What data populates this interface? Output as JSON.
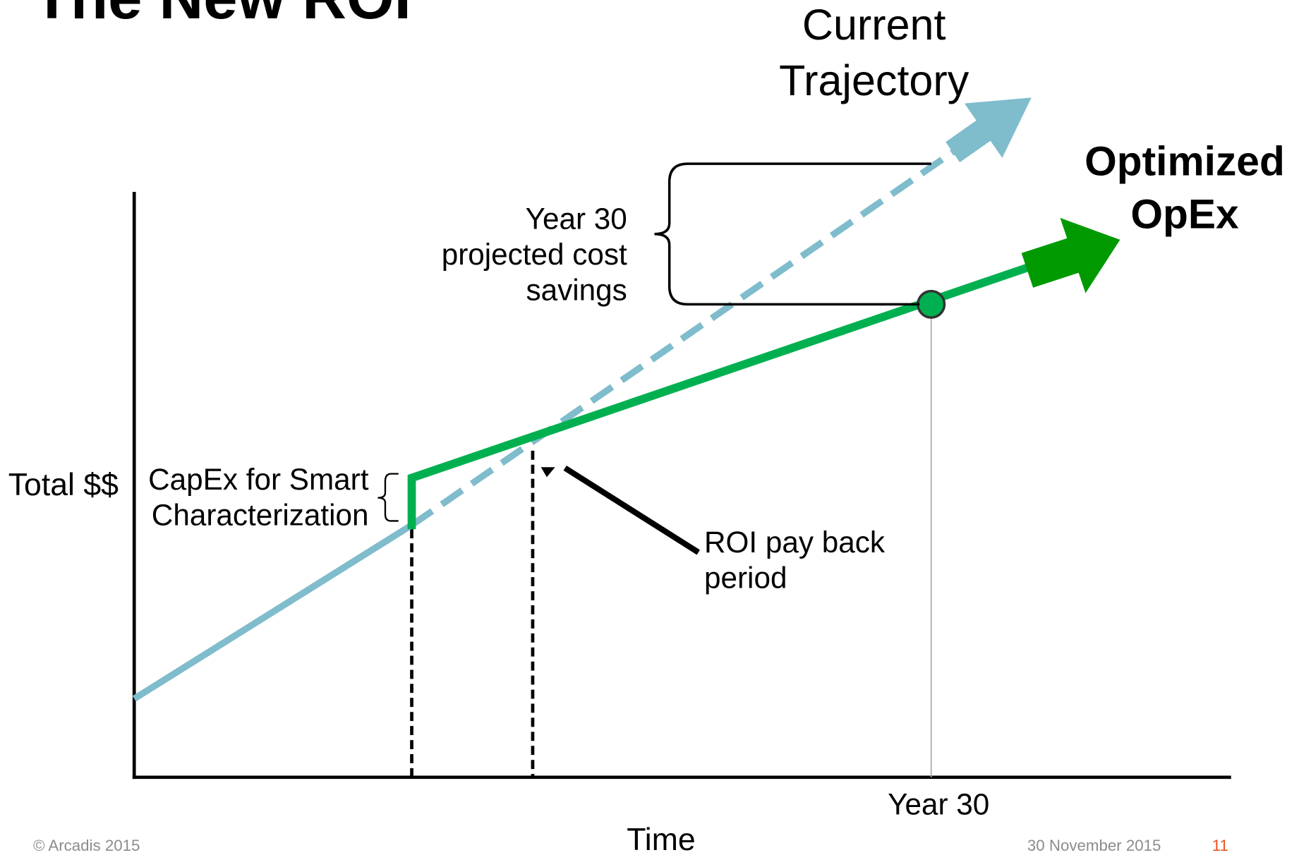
{
  "title": "The New ROI",
  "current_trajectory": [
    "Current",
    "Trajectory"
  ],
  "optimized_opex": [
    "Optimized",
    "OpEx"
  ],
  "savings_label": [
    "Year 30",
    "projected cost",
    "savings"
  ],
  "y_axis_label": "Total $$",
  "capex_label": [
    "CapEx for Smart",
    "Characterization"
  ],
  "roi_label": [
    "ROI pay back",
    "period"
  ],
  "year_label": "Year 30",
  "x_axis_label": "Time",
  "footer": {
    "copyright": "© Arcadis 2015",
    "date": "30 November 2015",
    "page": "11"
  }
}
